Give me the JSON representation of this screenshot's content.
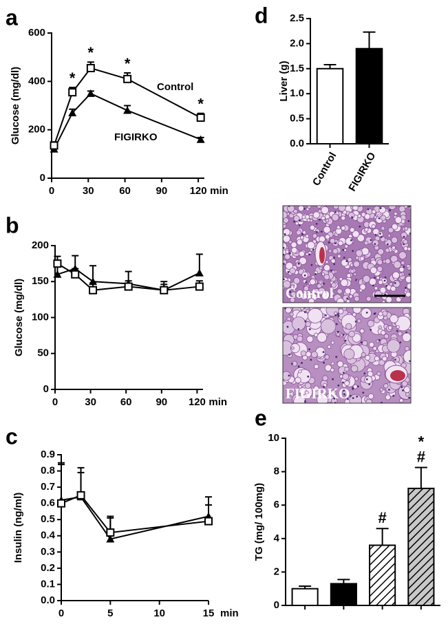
{
  "chart_data": [
    {
      "type": "line",
      "panel": "a",
      "x": [
        2,
        17,
        32,
        62,
        122
      ],
      "xlim": [
        0,
        125
      ],
      "xticks": [
        0,
        30,
        60,
        90,
        120
      ],
      "xlabel": "min",
      "ylim": [
        0,
        600
      ],
      "yticks": [
        0,
        200,
        400,
        600
      ],
      "ylabel": "Glucose (mg/dl)",
      "series": [
        {
          "name": "Control",
          "marker": "square",
          "color": "#000000",
          "values": [
            135,
            355,
            455,
            410,
            250
          ],
          "errors": [
            15,
            20,
            25,
            25,
            18
          ]
        },
        {
          "name": "FIGIRKO",
          "marker": "triangle",
          "color": "#000000",
          "values": [
            120,
            270,
            350,
            280,
            160
          ],
          "errors": [
            10,
            15,
            10,
            20,
            8
          ]
        }
      ],
      "annotations": [
        null,
        "*",
        "*",
        "*",
        "*"
      ]
    },
    {
      "type": "line",
      "panel": "b",
      "x": [
        2,
        17,
        32,
        62,
        92,
        122
      ],
      "xlim": [
        0,
        125
      ],
      "xticks": [
        0,
        30,
        60,
        90,
        120
      ],
      "xlabel": "min",
      "ylim": [
        0,
        200
      ],
      "yticks": [
        0,
        50,
        100,
        150,
        200
      ],
      "ylabel": "Glucose (mg/dl)",
      "series": [
        {
          "marker": "square",
          "color": "#000000",
          "values": [
            175,
            160,
            138,
            143,
            138,
            143
          ],
          "errors": [
            10,
            8,
            10,
            8,
            8,
            8
          ]
        },
        {
          "marker": "triangle",
          "color": "#000000",
          "values": [
            160,
            168,
            150,
            147,
            138,
            162
          ],
          "errors": [
            15,
            18,
            22,
            17,
            12,
            26
          ]
        }
      ]
    },
    {
      "type": "line",
      "panel": "c",
      "x": [
        0,
        2,
        5,
        15
      ],
      "xlim": [
        0,
        15
      ],
      "xticks": [
        0,
        5,
        10,
        15
      ],
      "xlabel": "min",
      "ylim": [
        0,
        0.9
      ],
      "yticks": [
        {
          "value": 0,
          "label": "0.0"
        },
        0.1,
        0.2,
        0.3,
        0.4,
        0.5,
        0.6,
        0.7,
        0.8,
        0.9
      ],
      "ylabel": "Insulin (ng/ml)",
      "series": [
        {
          "marker": "square",
          "color": "#000000",
          "values": [
            0.6,
            0.65,
            0.42,
            0.49
          ],
          "errors": [
            0.25,
            0.17,
            0.1,
            0.1
          ]
        },
        {
          "marker": "triangle",
          "color": "#000000",
          "values": [
            0.62,
            0.64,
            0.38,
            0.52
          ],
          "errors": [
            0.22,
            0.15,
            0.13,
            0.12
          ]
        }
      ]
    },
    {
      "type": "bar",
      "panel": "d",
      "categories": [
        "Control",
        "FIGIRKO"
      ],
      "values": [
        1.5,
        1.9
      ],
      "errors": [
        0.08,
        0.33
      ],
      "colors": [
        "#ffffff",
        "#000000"
      ],
      "ylim": [
        0,
        2.5
      ],
      "yticks": [
        {
          "value": 0,
          "label": "0.0"
        },
        0.5,
        {
          "value": 1,
          "label": "1.0"
        },
        1.5,
        {
          "value": 2,
          "label": "2.0"
        },
        2.5
      ],
      "ylabel": "Liver (g)"
    },
    {
      "type": "bar",
      "panel": "e",
      "categories": [
        null,
        null,
        null,
        null
      ],
      "values": [
        1.0,
        1.3,
        3.6,
        7.0
      ],
      "errors": [
        0.15,
        0.25,
        1.0,
        1.25
      ],
      "colors": [
        "#ffffff",
        "#000000",
        "#ffffff",
        "#c8c8c8"
      ],
      "hatch": [
        false,
        false,
        true,
        true
      ],
      "annotations": [
        [],
        [],
        [
          "#"
        ],
        [
          "*",
          "#"
        ]
      ],
      "ylim": [
        0,
        10
      ],
      "yticks": [
        0,
        2,
        4,
        6,
        8,
        10
      ],
      "ylabel": "TG (mg/ 100mg)"
    }
  ],
  "images": [
    {
      "label": "Control"
    },
    {
      "label": "FIGIRKO"
    }
  ]
}
